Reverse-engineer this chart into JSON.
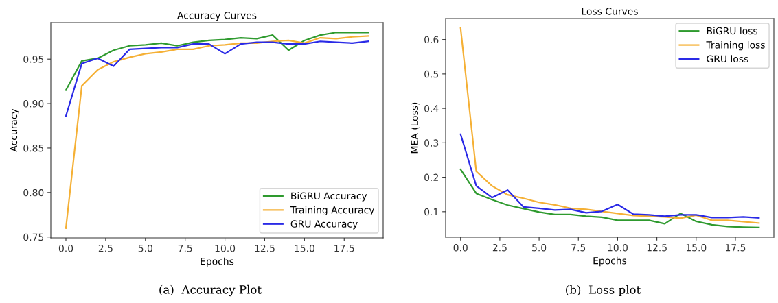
{
  "chart_data": [
    {
      "type": "line",
      "title": "Accuracy Curves",
      "xlabel": "Epochs",
      "ylabel": "Accuracy",
      "annotations": [
        "(a)  Accuracy Plot"
      ],
      "x": [
        0,
        1,
        2,
        3,
        4,
        5,
        6,
        7,
        8,
        9,
        10,
        11,
        12,
        13,
        14,
        15,
        16,
        17,
        18,
        19
      ],
      "series": [
        {
          "name": "BiGRU Accuracy",
          "color": "#2e9a2e",
          "values": [
            0.915,
            0.948,
            0.951,
            0.96,
            0.965,
            0.966,
            0.968,
            0.965,
            0.969,
            0.971,
            0.972,
            0.974,
            0.973,
            0.977,
            0.96,
            0.971,
            0.977,
            0.98,
            0.98,
            0.98
          ]
        },
        {
          "name": "Training Accuracy",
          "color": "#f5b035",
          "values": [
            0.76,
            0.92,
            0.938,
            0.947,
            0.952,
            0.956,
            0.958,
            0.961,
            0.961,
            0.965,
            0.966,
            0.968,
            0.968,
            0.97,
            0.971,
            0.968,
            0.974,
            0.973,
            0.975,
            0.976
          ]
        },
        {
          "name": "GRU Accuracy",
          "color": "#2a2ae6",
          "values": [
            0.886,
            0.945,
            0.951,
            0.942,
            0.961,
            0.962,
            0.963,
            0.963,
            0.967,
            0.967,
            0.956,
            0.967,
            0.969,
            0.969,
            0.967,
            0.967,
            0.97,
            0.969,
            0.968,
            0.97
          ]
        }
      ],
      "xlim": [
        -0.95,
        19.95
      ],
      "ylim": [
        0.749,
        0.991
      ],
      "xticks": [
        {
          "value": 0,
          "label": "0.0"
        },
        {
          "value": 2.5,
          "label": "2.5"
        },
        {
          "value": 5,
          "label": "5.0"
        },
        {
          "value": 7.5,
          "label": "7.5"
        },
        {
          "value": 10,
          "label": "10.0"
        },
        {
          "value": 12.5,
          "label": "12.5"
        },
        {
          "value": 15,
          "label": "15.0"
        },
        {
          "value": 17.5,
          "label": "17.5"
        }
      ],
      "yticks": [
        0.75,
        {
          "value": 0.8,
          "label": "0.80"
        },
        0.85,
        {
          "value": 0.9,
          "label": "0.90"
        },
        0.95
      ],
      "legend": "lower right",
      "line_style": "solid"
    },
    {
      "type": "line",
      "title": "Loss Curves",
      "xlabel": "Epochs",
      "ylabel": "MEA (Loss)",
      "annotations": [
        "(b)  Loss plot"
      ],
      "x": [
        0,
        1,
        2,
        3,
        4,
        5,
        6,
        7,
        8,
        9,
        10,
        11,
        12,
        13,
        14,
        15,
        16,
        17,
        18,
        19
      ],
      "series": [
        {
          "name": "BiGRU loss",
          "color": "#2e9a2e",
          "values": [
            0.223,
            0.153,
            0.135,
            0.119,
            0.109,
            0.099,
            0.092,
            0.092,
            0.087,
            0.084,
            0.075,
            0.075,
            0.075,
            0.065,
            0.095,
            0.072,
            0.062,
            0.057,
            0.055,
            0.054
          ]
        },
        {
          "name": "Training loss",
          "color": "#f5b035",
          "values": [
            0.634,
            0.217,
            0.175,
            0.149,
            0.139,
            0.127,
            0.12,
            0.11,
            0.107,
            0.101,
            0.095,
            0.089,
            0.087,
            0.085,
            0.081,
            0.09,
            0.075,
            0.075,
            0.071,
            0.067
          ]
        },
        {
          "name": "GRU loss",
          "color": "#2a2ae6",
          "values": [
            0.325,
            0.175,
            0.141,
            0.163,
            0.114,
            0.11,
            0.105,
            0.107,
            0.097,
            0.101,
            0.121,
            0.093,
            0.091,
            0.087,
            0.091,
            0.091,
            0.083,
            0.083,
            0.085,
            0.082
          ]
        }
      ],
      "xlim": [
        -0.95,
        19.95
      ],
      "ylim": [
        0.026,
        0.661
      ],
      "xticks": [
        {
          "value": 0,
          "label": "0.0"
        },
        {
          "value": 2.5,
          "label": "2.5"
        },
        {
          "value": 5,
          "label": "5.0"
        },
        {
          "value": 7.5,
          "label": "7.5"
        },
        {
          "value": 10,
          "label": "10.0"
        },
        {
          "value": 12.5,
          "label": "12.5"
        },
        {
          "value": 15,
          "label": "15.0"
        },
        {
          "value": 17.5,
          "label": "17.5"
        }
      ],
      "yticks": [
        0.1,
        0.2,
        0.3,
        0.4,
        0.5,
        0.6
      ],
      "legend": "upper right",
      "line_style": "solid"
    }
  ]
}
